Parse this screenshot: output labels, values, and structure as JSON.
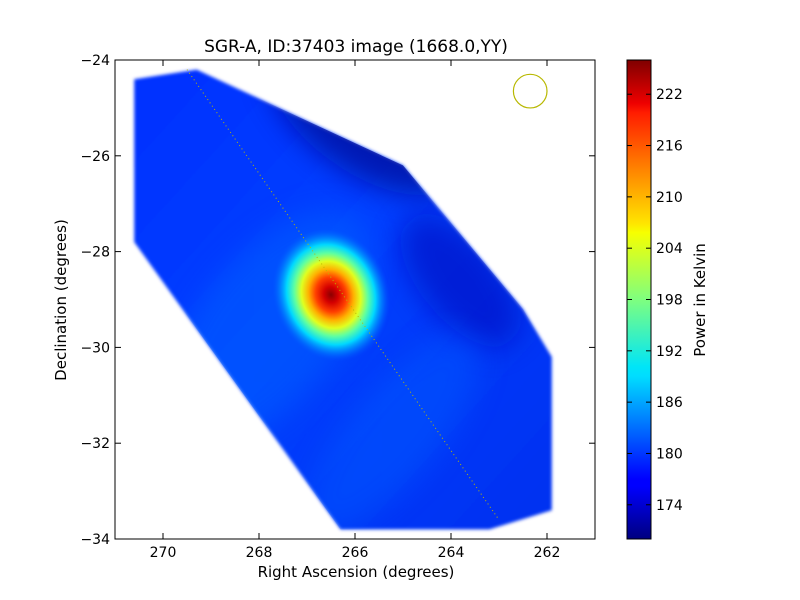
{
  "chart_data": {
    "type": "heatmap",
    "title": "SGR-A, ID:37403 image (1668.0,YY)",
    "xlabel": "Right Ascension (degrees)",
    "ylabel": "Declination (degrees)",
    "xlim": [
      271,
      261
    ],
    "ylim": [
      -34,
      -24
    ],
    "x_ticks": [
      "270",
      "268",
      "266",
      "264",
      "262"
    ],
    "y_ticks": [
      "−24",
      "−26",
      "−28",
      "−30",
      "−32",
      "−34"
    ],
    "colorbar": {
      "label": "Power in Kelvin",
      "range": [
        170,
        226
      ],
      "ticks": [
        "174",
        "180",
        "186",
        "192",
        "198",
        "204",
        "210",
        "216",
        "222"
      ],
      "colormap": "jet"
    },
    "footprint_polygon": [
      [
        270.6,
        -24.4
      ],
      [
        269.3,
        -24.2
      ],
      [
        265,
        -26.2
      ],
      [
        262.5,
        -29.2
      ],
      [
        261.9,
        -30.2
      ],
      [
        261.9,
        -33.4
      ],
      [
        263.2,
        -33.8
      ],
      [
        266.3,
        -33.8
      ],
      [
        270.6,
        -27.8
      ]
    ],
    "peak": {
      "ra": 266.5,
      "dec": -28.9,
      "value": 224
    },
    "background_level": 176,
    "plane_line": {
      "from": [
        269.5,
        -24.2
      ],
      "to": [
        263.0,
        -33.6
      ],
      "color": "#b8b800"
    },
    "beam_circle": {
      "ra": 262.35,
      "dec": -24.65,
      "radius_deg": 0.35,
      "color": "#b8b800"
    },
    "grid": false
  },
  "colors": {
    "jet_low": "#00007f",
    "jet_mid": "#7fff7f",
    "jet_high": "#7f0000"
  }
}
